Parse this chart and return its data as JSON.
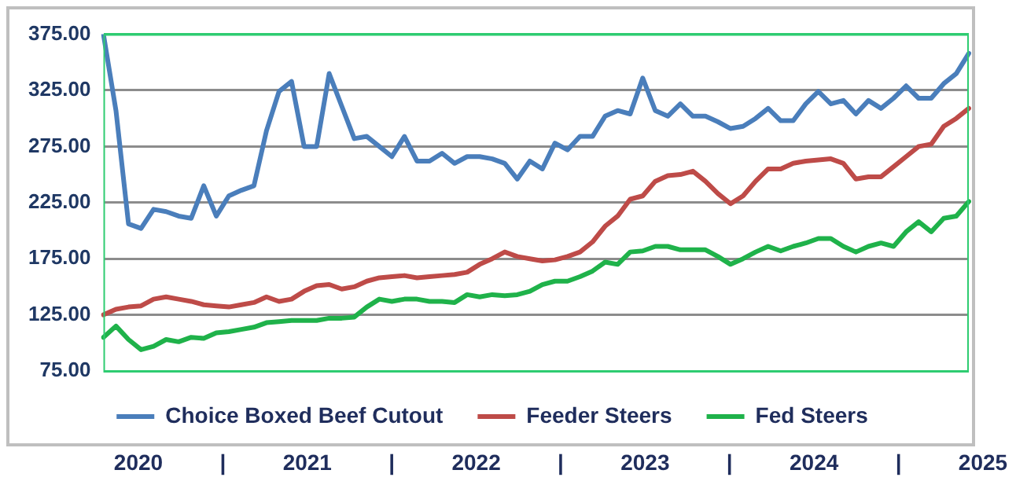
{
  "chart_data": {
    "type": "line",
    "categories": [
      null,
      null,
      null,
      null,
      null,
      null,
      null,
      null,
      null,
      null,
      null,
      null,
      null,
      null,
      null,
      null,
      null,
      null,
      null,
      null,
      null,
      null,
      null,
      null,
      null,
      null,
      null,
      null,
      null,
      null,
      null,
      null,
      null,
      null,
      null,
      null,
      null,
      null,
      null,
      null,
      null,
      null,
      null,
      null,
      null,
      null,
      null,
      null,
      null,
      null,
      null,
      null,
      null,
      null,
      null,
      null,
      null,
      null,
      null,
      null,
      null,
      null,
      null,
      null,
      null,
      null,
      null,
      null,
      null,
      null
    ],
    "series": [
      {
        "name": "Choice Boxed Beef Cutout",
        "color": "#4a7ebb",
        "values": [
          375,
          307,
          206,
          202,
          219,
          217,
          213,
          211,
          240,
          213,
          231,
          236,
          240,
          289,
          324,
          333,
          275,
          275,
          340,
          311,
          282,
          284,
          275,
          266,
          284,
          262,
          262,
          269,
          260,
          266,
          266,
          264,
          260,
          246,
          262,
          255,
          278,
          272,
          284,
          284,
          302,
          307,
          304,
          336,
          307,
          302,
          313,
          302,
          302,
          297,
          291,
          293,
          300,
          309,
          298,
          298,
          313,
          324,
          313,
          316,
          304,
          316,
          309,
          318,
          329,
          318,
          318,
          331,
          340,
          358
        ]
      },
      {
        "name": "Feeder Steers",
        "color": "#be4b48",
        "values": [
          125,
          130,
          132,
          133,
          139,
          141,
          139,
          137,
          134,
          133,
          132,
          134,
          136,
          141,
          137,
          139,
          146,
          151,
          152,
          148,
          150,
          155,
          158,
          159,
          160,
          158,
          159,
          160,
          161,
          163,
          170,
          175,
          181,
          177,
          175,
          173,
          174,
          177,
          181,
          190,
          204,
          213,
          228,
          231,
          244,
          249,
          250,
          253,
          244,
          233,
          224,
          231,
          244,
          255,
          255,
          260,
          262,
          263,
          264,
          260,
          246,
          248,
          248,
          257,
          266,
          275,
          277,
          293,
          300,
          309
        ]
      },
      {
        "name": "Fed Steers",
        "color": "#1fb24a",
        "values": [
          105,
          115,
          103,
          94,
          97,
          103,
          101,
          105,
          104,
          109,
          110,
          112,
          114,
          118,
          119,
          120,
          120,
          120,
          122,
          122,
          123,
          132,
          139,
          137,
          139,
          139,
          137,
          137,
          136,
          143,
          141,
          143,
          142,
          143,
          146,
          152,
          155,
          155,
          159,
          164,
          172,
          170,
          181,
          182,
          186,
          186,
          183,
          183,
          183,
          177,
          170,
          175,
          181,
          186,
          182,
          186,
          189,
          193,
          193,
          186,
          181,
          186,
          189,
          186,
          199,
          208,
          199,
          211,
          213,
          226
        ]
      }
    ],
    "ylim": [
      75,
      375
    ],
    "yticks": [
      {
        "value": 75,
        "label": "75.00"
      },
      {
        "value": 125,
        "label": "125.00"
      },
      {
        "value": 175,
        "label": "175.00"
      },
      {
        "value": 225,
        "label": "225.00"
      },
      {
        "value": 275,
        "label": "275.00"
      },
      {
        "value": 325,
        "label": "325.00"
      },
      {
        "value": 375,
        "label": "375.00"
      }
    ],
    "grid": "y",
    "legend": "bottom",
    "marker": "none",
    "annotations": [
      "2020",
      "|",
      "2021",
      "|",
      "2022",
      "|",
      "2023",
      "|",
      "2024",
      "|",
      "2025"
    ]
  }
}
